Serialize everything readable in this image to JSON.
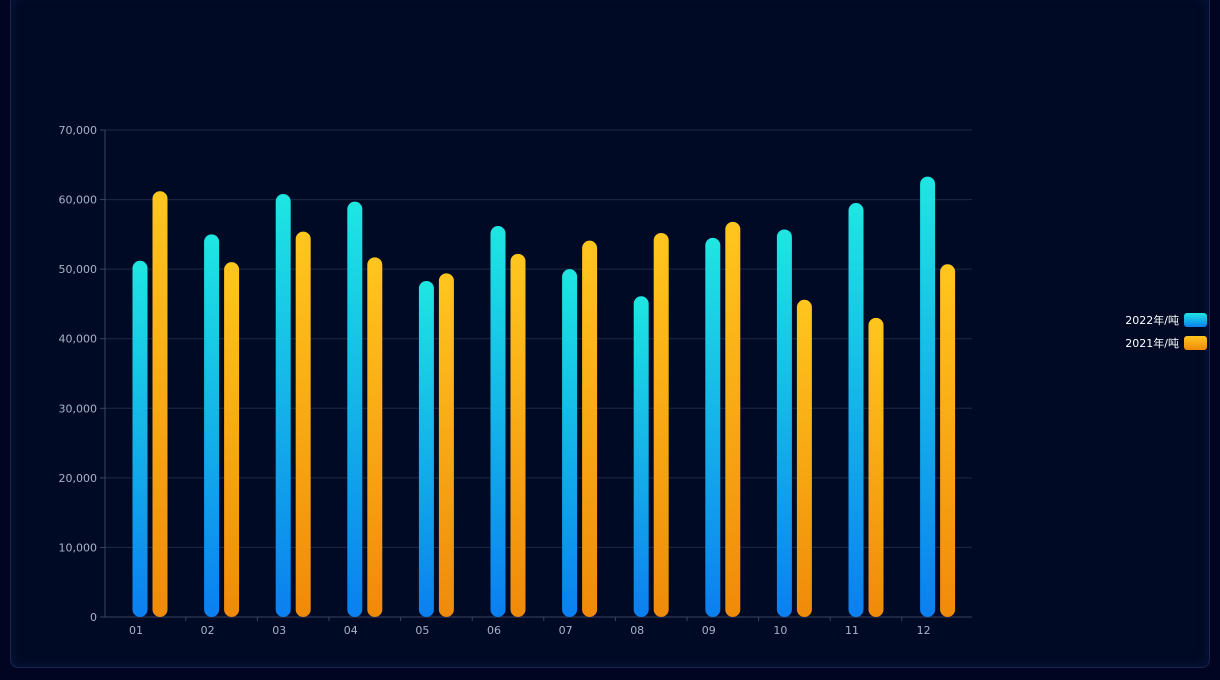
{
  "chart_data": {
    "type": "bar",
    "categories": [
      "01",
      "02",
      "03",
      "04",
      "05",
      "06",
      "07",
      "08",
      "09",
      "10",
      "11",
      "12"
    ],
    "series": [
      {
        "name": "2022年/吨",
        "colors": [
          "#1ee6e2",
          "#0b7ff0"
        ],
        "values": [
          51200,
          55000,
          60800,
          59700,
          48300,
          56200,
          50000,
          46100,
          54500,
          55700,
          59500,
          63300
        ]
      },
      {
        "name": "2021年/吨",
        "colors": [
          "#ffc61e",
          "#f08a0a"
        ],
        "values": [
          61200,
          51000,
          55400,
          51700,
          49400,
          52200,
          54100,
          55200,
          56800,
          45600,
          43000,
          50700
        ]
      }
    ],
    "ylim": [
      0,
      70000
    ],
    "yticks": [
      0,
      10000,
      20000,
      30000,
      40000,
      50000,
      60000,
      70000
    ],
    "ytick_labels": [
      "0",
      "10,000",
      "20,000",
      "30,000",
      "40,000",
      "50,000",
      "60,000",
      "70,000"
    ],
    "grid": true,
    "legend_position": "right"
  }
}
